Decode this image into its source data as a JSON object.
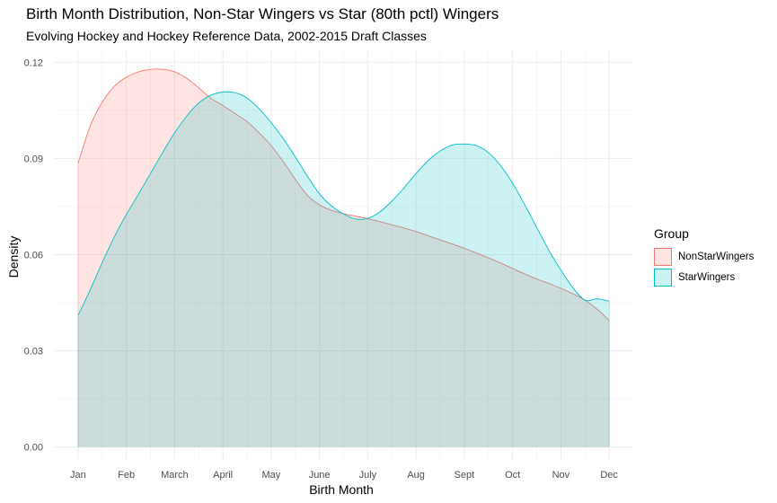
{
  "chart_data": {
    "type": "area",
    "title": "Birth Month Distribution, Non-Star Wingers vs Star (80th pctl) Wingers",
    "subtitle": "Evolving Hockey and Hockey Reference Data, 2002-2015 Draft Classes",
    "xlabel": "Birth Month",
    "ylabel": "Density",
    "categories": [
      "Jan",
      "Feb",
      "March",
      "April",
      "May",
      "June",
      "July",
      "Aug",
      "Sept",
      "Oct",
      "Nov",
      "Dec"
    ],
    "xlim": [
      0.5,
      12.5
    ],
    "ylim": [
      -0.004,
      0.124
    ],
    "yticks": [
      0.0,
      0.03,
      0.06,
      0.09,
      0.12
    ],
    "ytick_labels": [
      "0.00",
      "0.03",
      "0.06",
      "0.09",
      "0.12"
    ],
    "grid": true,
    "legend": {
      "title": "Group",
      "position": "right"
    },
    "series": [
      {
        "name": "NonStarWingers",
        "line_color": "#F8766D",
        "fill_color": "#F8766D",
        "x": [
          1.0,
          1.25,
          1.5,
          1.75,
          2.0,
          2.25,
          2.5,
          2.75,
          3.0,
          3.25,
          3.5,
          3.75,
          4.0,
          4.25,
          4.5,
          4.75,
          5.0,
          5.25,
          5.5,
          5.75,
          6.0,
          6.25,
          6.5,
          6.75,
          7.0,
          7.25,
          7.5,
          7.75,
          8.0,
          8.25,
          8.5,
          8.75,
          9.0,
          9.25,
          9.5,
          9.75,
          10.0,
          10.25,
          10.5,
          10.75,
          11.0,
          11.25,
          11.5,
          11.75,
          12.0
        ],
        "values": [
          0.0885,
          0.1,
          0.1075,
          0.1125,
          0.1153,
          0.117,
          0.1178,
          0.1178,
          0.117,
          0.115,
          0.112,
          0.1088,
          0.1065,
          0.104,
          0.1015,
          0.098,
          0.094,
          0.089,
          0.0835,
          0.0785,
          0.0755,
          0.0738,
          0.0728,
          0.072,
          0.0712,
          0.0703,
          0.0693,
          0.0683,
          0.0672,
          0.0659,
          0.0646,
          0.0633,
          0.062,
          0.0605,
          0.059,
          0.0574,
          0.0557,
          0.054,
          0.0524,
          0.051,
          0.0495,
          0.0478,
          0.0458,
          0.043,
          0.0395
        ]
      },
      {
        "name": "StarWingers",
        "line_color": "#00BFC4",
        "fill_color": "#00BFC4",
        "x": [
          1.0,
          1.25,
          1.5,
          1.75,
          2.0,
          2.25,
          2.5,
          2.75,
          3.0,
          3.25,
          3.5,
          3.75,
          4.0,
          4.25,
          4.5,
          4.75,
          5.0,
          5.25,
          5.5,
          5.75,
          6.0,
          6.25,
          6.5,
          6.75,
          7.0,
          7.25,
          7.5,
          7.75,
          8.0,
          8.25,
          8.5,
          8.75,
          9.0,
          9.25,
          9.5,
          9.75,
          10.0,
          10.25,
          10.5,
          10.75,
          11.0,
          11.25,
          11.5,
          11.75,
          12.0
        ],
        "values": [
          0.041,
          0.049,
          0.0575,
          0.0655,
          0.0725,
          0.0788,
          0.0853,
          0.0918,
          0.098,
          0.1032,
          0.1073,
          0.1097,
          0.1107,
          0.1105,
          0.1088,
          0.1055,
          0.1012,
          0.0962,
          0.0905,
          0.0845,
          0.079,
          0.0752,
          0.0727,
          0.0711,
          0.0713,
          0.0733,
          0.0767,
          0.0808,
          0.0853,
          0.0893,
          0.0923,
          0.0942,
          0.0945,
          0.094,
          0.0918,
          0.0878,
          0.0823,
          0.0756,
          0.0685,
          0.0614,
          0.0552,
          0.0497,
          0.0458,
          0.0462,
          0.0455
        ]
      }
    ]
  }
}
